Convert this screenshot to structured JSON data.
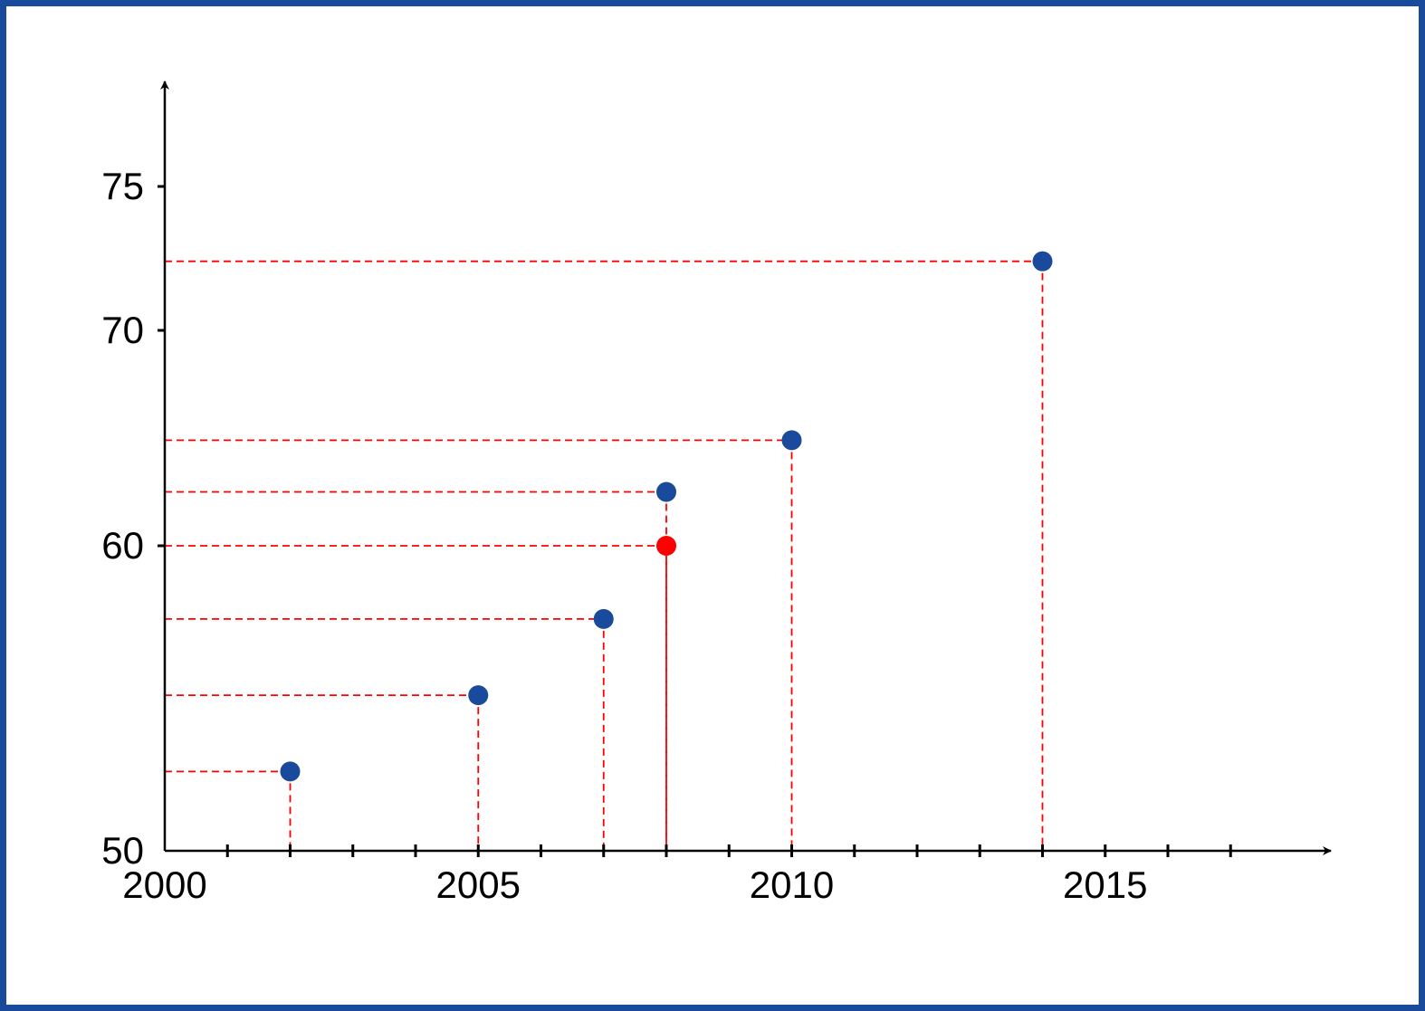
{
  "colors": {
    "frame": "#1a4a9c",
    "point": "#1a4a9c",
    "highlight": "#ff0000",
    "guide": "#ff0000",
    "axis": "#000000"
  },
  "chart_data": {
    "type": "scatter",
    "title": "",
    "xlabel": "",
    "ylabel": "",
    "xlim": [
      2000,
      2019
    ],
    "ylim": [
      50,
      77
    ],
    "x_tick_labels": [
      "2000",
      "2005",
      "2010",
      "2015"
    ],
    "x_tick_marks": [
      2000,
      2001,
      2002,
      2003,
      2004,
      2005,
      2006,
      2007,
      2008,
      2009,
      2010,
      2011,
      2012,
      2013,
      2014,
      2015,
      2016,
      2017
    ],
    "y_tick_labels": [
      "50",
      "60",
      "70",
      "75"
    ],
    "y_tick_marks": [
      60,
      70,
      75
    ],
    "grid": false,
    "guide_lines": "dashed",
    "points": [
      {
        "x": 2002,
        "y": 52.6,
        "color": "#1a4a9c"
      },
      {
        "x": 2005,
        "y": 55.1,
        "color": "#1a4a9c"
      },
      {
        "x": 2007,
        "y": 57.6,
        "color": "#1a4a9c"
      },
      {
        "x": 2008,
        "y": 60.0,
        "color": "#ff0000"
      },
      {
        "x": 2008,
        "y": 62.5,
        "color": "#1a4a9c"
      },
      {
        "x": 2010,
        "y": 64.9,
        "color": "#1a4a9c"
      },
      {
        "x": 2014,
        "y": 72.4,
        "color": "#1a4a9c"
      }
    ]
  }
}
